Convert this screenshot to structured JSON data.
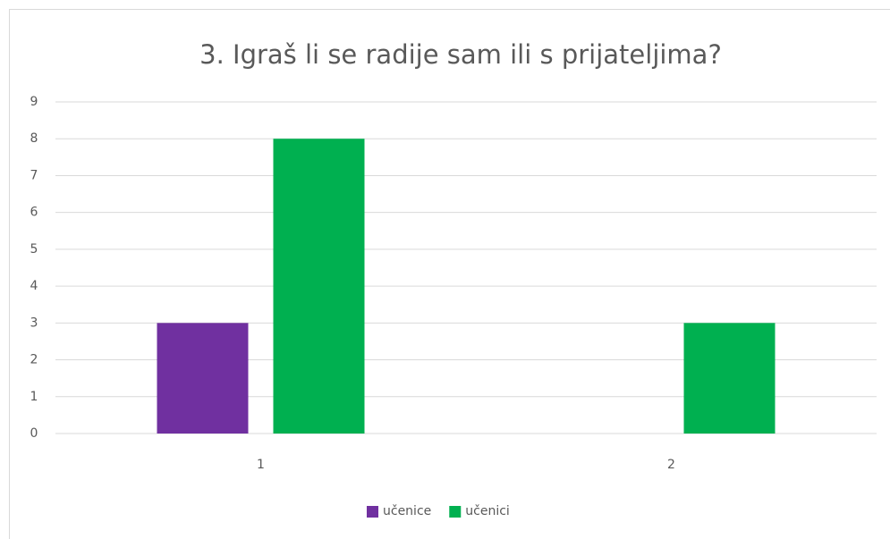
{
  "chart_data": {
    "type": "bar",
    "title": "3. Igraš li se radije sam ili s prijateljima?",
    "categories": [
      "1",
      "2"
    ],
    "series": [
      {
        "name": "učenice",
        "color": "#7030a0",
        "values": [
          3,
          0
        ]
      },
      {
        "name": "učenici",
        "color": "#00b050",
        "values": [
          8,
          3
        ]
      }
    ],
    "ylim": [
      0,
      9
    ],
    "yticks": [
      0,
      1,
      2,
      3,
      4,
      5,
      6,
      7,
      8,
      9
    ],
    "grid": true,
    "legend": "bottom"
  }
}
